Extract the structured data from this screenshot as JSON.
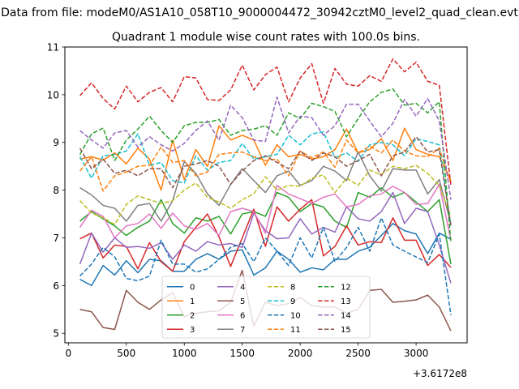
{
  "suptitle": "Data from file: modeM0/AS1A10_058T10_9000004472_30942cztM0_level2_quad_clean.evt",
  "chart_data": {
    "type": "line",
    "title": "Quadrant 1 module wise count rates with 100.0s bins.",
    "xlabel": "",
    "ylabel": "",
    "x_offset_label": "+3.6172e8",
    "xlim": [
      -30,
      3440
    ],
    "ylim": [
      4.8,
      11
    ],
    "xticks": [
      0,
      500,
      1000,
      1500,
      2000,
      2500,
      3000
    ],
    "yticks": [
      5,
      6,
      7,
      8,
      9,
      10,
      11
    ],
    "grid": false,
    "legend_position": "lower center",
    "legend_columns": 4,
    "x": [
      100,
      200,
      300,
      400,
      500,
      600,
      700,
      800,
      900,
      1000,
      1100,
      1200,
      1300,
      1400,
      1500,
      1600,
      1700,
      1800,
      1900,
      2000,
      2100,
      2200,
      2300,
      2400,
      2500,
      2600,
      2700,
      2800,
      2900,
      3000,
      3100,
      3200,
      3300
    ],
    "series": [
      {
        "name": "0",
        "color": "#1f77b4",
        "dash": "solid",
        "values": [
          6.13,
          6.0,
          6.42,
          6.22,
          6.52,
          6.27,
          6.55,
          6.52,
          6.3,
          6.3,
          6.55,
          6.67,
          6.55,
          6.72,
          6.75,
          6.22,
          6.37,
          6.72,
          6.55,
          6.28,
          6.37,
          6.33,
          6.55,
          6.55,
          6.72,
          6.8,
          7.05,
          7.3,
          7.15,
          7.08,
          6.67,
          7.1,
          6.97
        ]
      },
      {
        "name": "1",
        "color": "#ff7f0e",
        "dash": "solid",
        "values": [
          8.65,
          8.7,
          8.63,
          8.78,
          8.55,
          8.88,
          8.65,
          8.0,
          9.05,
          8.22,
          8.85,
          8.5,
          9.35,
          9.05,
          9.15,
          9.05,
          8.52,
          8.95,
          8.7,
          8.75,
          8.65,
          8.7,
          8.85,
          9.28,
          8.78,
          8.85,
          9.08,
          8.62,
          9.3,
          8.85,
          8.75,
          8.7,
          8.2
        ]
      },
      {
        "name": "2",
        "color": "#2ca02c",
        "dash": "solid",
        "values": [
          7.35,
          7.55,
          7.4,
          7.25,
          7.05,
          7.22,
          7.35,
          7.8,
          7.3,
          7.1,
          7.42,
          7.35,
          7.45,
          7.08,
          7.5,
          7.55,
          7.45,
          7.95,
          7.85,
          7.55,
          7.72,
          7.65,
          7.35,
          7.22,
          7.95,
          7.85,
          8.05,
          7.85,
          7.95,
          7.75,
          7.55,
          7.8,
          6.45
        ]
      },
      {
        "name": "3",
        "color": "#d62728",
        "dash": "solid",
        "values": [
          6.98,
          7.1,
          6.58,
          6.85,
          6.82,
          6.35,
          6.9,
          6.5,
          6.3,
          6.92,
          7.22,
          7.5,
          7.02,
          6.4,
          7.0,
          7.6,
          6.82,
          7.65,
          7.35,
          7.6,
          7.8,
          6.62,
          6.82,
          7.25,
          6.85,
          6.92,
          6.9,
          7.42,
          6.95,
          6.95,
          6.42,
          6.65,
          6.38
        ]
      },
      {
        "name": "4",
        "color": "#9467bd",
        "dash": "solid",
        "values": [
          6.45,
          7.1,
          6.7,
          7.0,
          6.8,
          6.82,
          6.78,
          6.9,
          6.55,
          6.85,
          6.72,
          6.92,
          6.85,
          6.88,
          6.8,
          7.52,
          7.15,
          6.98,
          7.0,
          7.4,
          7.08,
          7.22,
          7.12,
          7.65,
          7.4,
          7.35,
          7.55,
          7.95,
          7.3,
          7.62,
          7.55,
          6.85,
          6.05
        ]
      },
      {
        "name": "5",
        "color": "#8c564b",
        "dash": "solid",
        "values": [
          5.5,
          5.45,
          5.12,
          5.08,
          5.9,
          5.65,
          5.5,
          5.7,
          5.85,
          5.35,
          5.42,
          5.45,
          5.47,
          5.65,
          6.32,
          5.15,
          5.65,
          5.58,
          5.62,
          5.75,
          5.58,
          5.55,
          5.55,
          5.42,
          5.5,
          5.9,
          5.92,
          5.65,
          5.67,
          5.7,
          5.8,
          5.55,
          5.05
        ]
      },
      {
        "name": "6",
        "color": "#e377c2",
        "dash": "solid",
        "values": [
          7.22,
          7.58,
          7.45,
          7.0,
          7.25,
          7.3,
          7.5,
          7.2,
          7.52,
          7.25,
          7.18,
          7.3,
          7.05,
          7.55,
          7.62,
          7.55,
          7.1,
          8.1,
          7.92,
          7.82,
          7.72,
          7.85,
          7.92,
          7.65,
          7.7,
          7.88,
          7.92,
          8.08,
          7.95,
          7.7,
          7.72,
          8.12,
          6.95
        ]
      },
      {
        "name": "7",
        "color": "#7f7f7f",
        "dash": "solid",
        "values": [
          8.05,
          7.9,
          7.68,
          7.62,
          7.35,
          7.68,
          7.72,
          7.35,
          7.78,
          8.6,
          8.35,
          7.92,
          7.68,
          8.12,
          8.45,
          8.2,
          7.95,
          8.3,
          8.4,
          8.1,
          8.2,
          8.5,
          8.4,
          8.2,
          8.8,
          8.3,
          7.98,
          8.45,
          8.42,
          8.42,
          7.92,
          8.22,
          7.3
        ]
      },
      {
        "name": "8",
        "color": "#bcbd22",
        "dash": "dashed",
        "values": [
          7.78,
          7.52,
          7.42,
          7.28,
          7.7,
          7.88,
          7.8,
          7.72,
          7.78,
          8.0,
          8.15,
          7.85,
          7.75,
          7.62,
          7.8,
          7.92,
          8.28,
          8.0,
          8.1,
          8.08,
          8.25,
          8.32,
          7.95,
          8.25,
          8.1,
          8.42,
          8.32,
          8.5,
          8.45,
          8.52,
          8.35,
          8.1,
          7.45
        ]
      },
      {
        "name": "9",
        "color": "#17becf",
        "dash": "dashed",
        "values": [
          8.7,
          8.25,
          8.72,
          8.75,
          8.82,
          9.18,
          8.52,
          8.58,
          8.2,
          8.15,
          8.72,
          8.42,
          8.58,
          8.62,
          8.98,
          8.65,
          8.7,
          8.75,
          9.15,
          8.95,
          9.18,
          9.22,
          8.68,
          8.78,
          8.6,
          8.95,
          9.0,
          8.95,
          8.72,
          9.08,
          9.02,
          8.95,
          7.25
        ]
      },
      {
        "name": "10",
        "color": "#1f77b4",
        "dash": "dashed",
        "values": [
          6.2,
          6.45,
          6.8,
          6.6,
          6.15,
          6.1,
          6.2,
          6.95,
          6.45,
          6.45,
          6.28,
          6.35,
          6.55,
          6.8,
          6.88,
          6.5,
          7.0,
          6.72,
          6.42,
          7.0,
          6.58,
          7.22,
          6.5,
          6.8,
          7.22,
          6.72,
          7.42,
          6.85,
          6.72,
          6.6,
          6.48,
          7.08,
          5.38
        ]
      },
      {
        "name": "11",
        "color": "#ff7f0e",
        "dash": "dashed",
        "values": [
          8.4,
          8.7,
          7.98,
          8.3,
          8.38,
          8.5,
          8.52,
          8.9,
          8.58,
          8.62,
          8.3,
          8.38,
          8.75,
          8.78,
          8.8,
          8.7,
          8.62,
          8.65,
          8.3,
          8.82,
          8.68,
          8.8,
          8.48,
          9.05,
          8.78,
          8.92,
          8.78,
          9.05,
          8.82,
          8.72,
          8.7,
          8.88,
          8.15
        ]
      },
      {
        "name": "12",
        "color": "#2ca02c",
        "dash": "dashed",
        "values": [
          8.75,
          9.18,
          9.3,
          8.62,
          9.05,
          9.28,
          9.55,
          9.25,
          9.0,
          9.35,
          9.42,
          9.42,
          9.48,
          9.15,
          9.25,
          9.28,
          9.35,
          9.15,
          9.62,
          9.5,
          9.82,
          9.75,
          9.65,
          9.12,
          9.5,
          9.85,
          10.05,
          10.12,
          9.78,
          9.82,
          9.62,
          9.85,
          6.9
        ]
      },
      {
        "name": "13",
        "color": "#d62728",
        "dash": "dashed",
        "values": [
          9.98,
          10.25,
          9.92,
          9.7,
          10.18,
          9.85,
          10.05,
          10.15,
          9.85,
          10.38,
          10.35,
          9.9,
          9.88,
          10.1,
          10.62,
          10.1,
          10.42,
          10.58,
          9.85,
          10.35,
          10.65,
          9.82,
          10.55,
          10.22,
          10.18,
          10.4,
          10.28,
          10.75,
          10.48,
          10.68,
          10.28,
          10.2,
          8.1
        ]
      },
      {
        "name": "14",
        "color": "#9467bd",
        "dash": "dashed",
        "values": [
          9.25,
          9.05,
          8.88,
          9.2,
          9.25,
          8.9,
          9.12,
          8.95,
          8.82,
          8.98,
          9.25,
          9.45,
          9.05,
          9.78,
          9.52,
          9.05,
          9.02,
          9.95,
          9.2,
          9.55,
          9.52,
          9.15,
          9.35,
          9.8,
          9.8,
          9.45,
          9.12,
          9.4,
          9.9,
          9.55,
          9.92,
          9.45,
          7.8
        ]
      },
      {
        "name": "15",
        "color": "#8c564b",
        "dash": "dashed",
        "values": [
          8.88,
          8.45,
          8.65,
          8.35,
          8.42,
          8.3,
          8.45,
          8.45,
          8.05,
          8.5,
          8.55,
          8.62,
          8.5,
          8.12,
          8.4,
          8.62,
          8.72,
          8.58,
          8.45,
          8.82,
          8.62,
          8.78,
          8.7,
          8.5,
          8.62,
          8.75,
          8.3,
          8.72,
          8.8,
          9.12,
          8.8,
          8.85,
          7.25
        ]
      }
    ]
  }
}
